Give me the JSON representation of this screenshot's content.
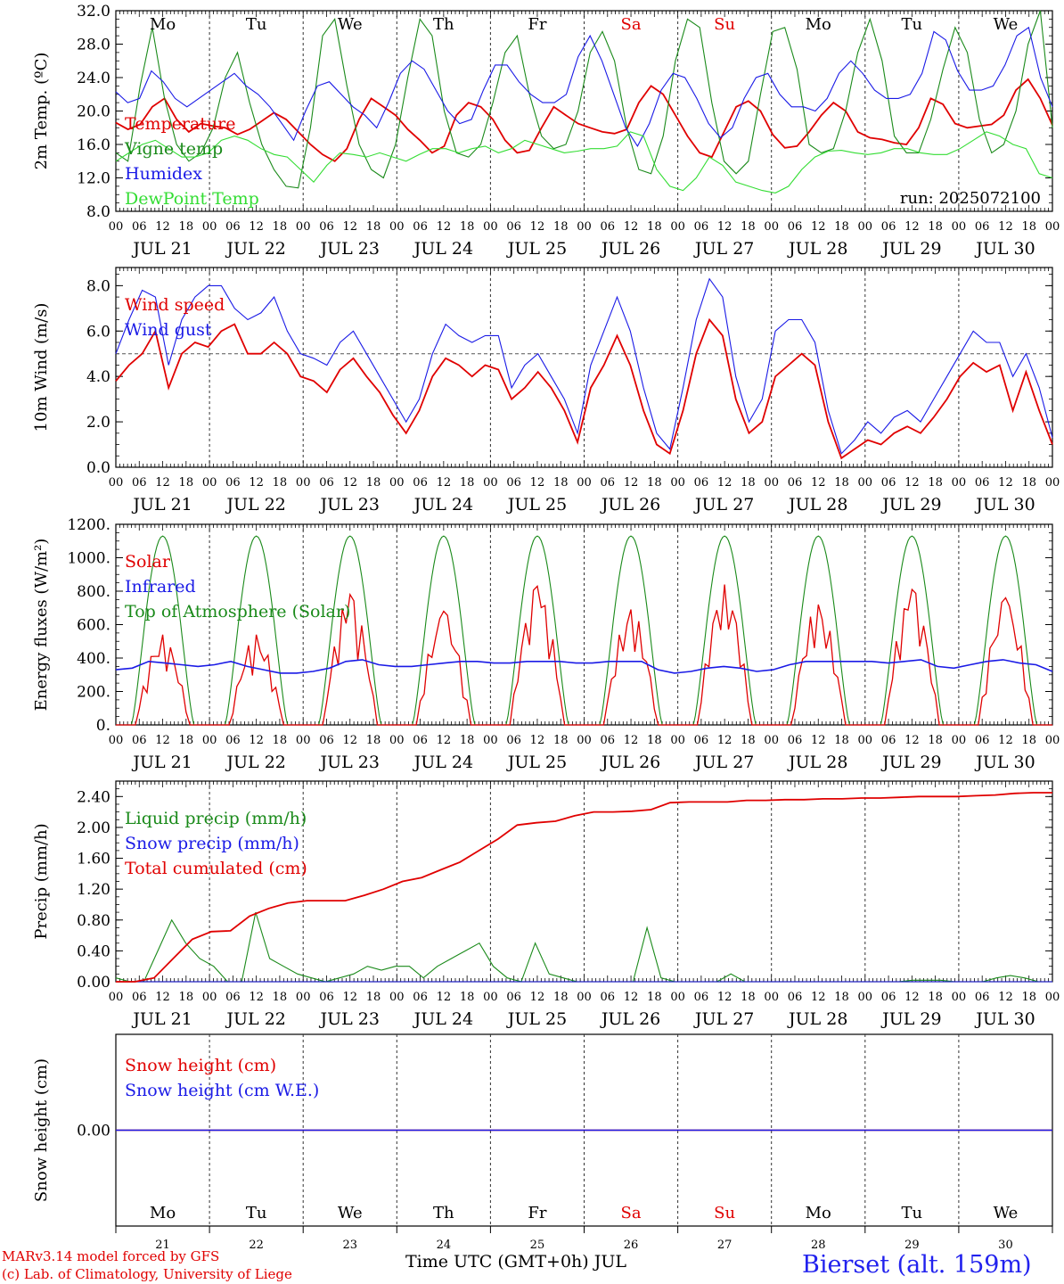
{
  "station": "Bierset (alt. 159m)",
  "model_line": "MARv3.14 model forced by GFS",
  "credit_line": "(c) Lab. of Climatology, University of Liege",
  "time_axis_title": "Time UTC (GMT+0h) JUL",
  "days": [
    {
      "weekday": "Mo",
      "date_label": "JUL 21",
      "day_num": "21",
      "weekend": false
    },
    {
      "weekday": "Tu",
      "date_label": "JUL 22",
      "day_num": "22",
      "weekend": false
    },
    {
      "weekday": "We",
      "date_label": "JUL 23",
      "day_num": "23",
      "weekend": false
    },
    {
      "weekday": "Th",
      "date_label": "JUL 24",
      "day_num": "24",
      "weekend": false
    },
    {
      "weekday": "Fr",
      "date_label": "JUL 25",
      "day_num": "25",
      "weekend": false
    },
    {
      "weekday": "Sa",
      "date_label": "JUL 26",
      "day_num": "26",
      "weekend": true
    },
    {
      "weekday": "Su",
      "date_label": "JUL 27",
      "day_num": "27",
      "weekend": true
    },
    {
      "weekday": "Mo",
      "date_label": "JUL 28",
      "day_num": "28",
      "weekend": false
    },
    {
      "weekday": "Tu",
      "date_label": "JUL 29",
      "day_num": "29",
      "weekend": false
    },
    {
      "weekday": "We",
      "date_label": "JUL 30",
      "day_num": "30",
      "weekend": false
    }
  ],
  "hour_ticks": [
    "00",
    "06",
    "12",
    "18"
  ],
  "colors": {
    "weekday": "#000000",
    "weekend": "#e00000",
    "red": "#e00000",
    "green": "#1a8a1a",
    "blue": "#1a1ae6",
    "lightgreen": "#33dd33"
  },
  "chart_data": [
    {
      "id": "temperature",
      "type": "line",
      "ylabel": "2m Temp. (ºC)",
      "ylim": [
        8,
        32
      ],
      "yticks": [
        "8.0",
        "12.0",
        "16.0",
        "20.0",
        "24.0",
        "28.0",
        "32.0"
      ],
      "annotation": "run: 2025072100",
      "show_weekday_labels": true,
      "x_unit": "hours since JUL 21 00 UTC, 3-hourly",
      "x_step_hours": 3,
      "series": [
        {
          "name": "Temperature",
          "color": "#e00000",
          "values": [
            18.6,
            17.8,
            18.4,
            20.5,
            21.5,
            19.0,
            17.5,
            18.5,
            18.2,
            18.0,
            17.2,
            17.8,
            18.8,
            19.8,
            19.0,
            17.5,
            16.0,
            14.8,
            14.0,
            15.5,
            19.0,
            21.5,
            20.5,
            19.5,
            17.8,
            16.5,
            15.0,
            15.8,
            19.5,
            21.0,
            20.5,
            19.0,
            16.5,
            15.0,
            15.3,
            18.0,
            20.5,
            19.5,
            18.5,
            18.0,
            17.5,
            17.3,
            17.8,
            21.0,
            23.0,
            22.0,
            19.5,
            17.0,
            15.0,
            14.5,
            17.5,
            20.5,
            21.2,
            20.0,
            17.2,
            15.6,
            15.8,
            17.5,
            19.5,
            21.0,
            20.0,
            17.5,
            16.8,
            16.6,
            16.2,
            16.0,
            18.0,
            21.5,
            20.8,
            18.5,
            18.0,
            18.2,
            18.4,
            19.5,
            22.5,
            23.8,
            21.5,
            18.3
          ]
        },
        {
          "name": "Vigne temp",
          "color": "#1a8a1a",
          "values": [
            15.0,
            14.0,
            23.0,
            30.0,
            21.5,
            16.0,
            14.0,
            15.0,
            18.0,
            24.0,
            27.0,
            21.0,
            16.0,
            13.0,
            11.0,
            10.8,
            18.0,
            29.0,
            31.0,
            23.0,
            16.0,
            13.0,
            12.0,
            16.0,
            24.0,
            31.0,
            29.0,
            20.0,
            15.0,
            14.5,
            16.0,
            21.0,
            27.0,
            29.0,
            22.0,
            17.0,
            15.5,
            16.0,
            20.0,
            27.0,
            29.5,
            26.0,
            18.0,
            13.0,
            12.5,
            17.0,
            26.0,
            31.0,
            30.0,
            21.0,
            14.0,
            12.5,
            14.0,
            22.0,
            29.5,
            30.0,
            25.0,
            16.0,
            15.0,
            15.5,
            20.0,
            27.0,
            31.0,
            26.0,
            17.0,
            15.0,
            15.0,
            19.0,
            25.0,
            30.0,
            27.0,
            19.0,
            15.0,
            16.0,
            20.0,
            28.0,
            32.0,
            18.0
          ]
        },
        {
          "name": "Humidex",
          "color": "#1a1ae6",
          "values": [
            22.3,
            21.0,
            21.5,
            24.8,
            23.5,
            21.5,
            20.5,
            21.5,
            22.5,
            23.5,
            24.5,
            23.0,
            22.0,
            20.5,
            18.5,
            16.5,
            20.0,
            23.0,
            23.5,
            22.0,
            20.5,
            19.5,
            18.0,
            21.0,
            24.5,
            26.0,
            25.0,
            22.5,
            20.0,
            18.5,
            19.0,
            22.5,
            25.5,
            25.5,
            23.5,
            22.0,
            21.0,
            21.0,
            22.0,
            26.5,
            29.0,
            26.0,
            22.0,
            18.0,
            15.8,
            18.5,
            22.5,
            24.5,
            24.0,
            21.5,
            18.5,
            16.8,
            18.0,
            21.5,
            24.0,
            24.5,
            22.0,
            20.5,
            20.5,
            20.0,
            21.5,
            24.5,
            26.0,
            24.5,
            22.5,
            21.5,
            21.5,
            22.0,
            24.5,
            29.5,
            28.5,
            24.8,
            22.5,
            22.5,
            23.0,
            25.5,
            29.0,
            30.0,
            24.0,
            20.5
          ]
        },
        {
          "name": "DewPoint Temp",
          "color": "#33dd33",
          "values": [
            14.0,
            15.0,
            16.0,
            16.5,
            15.5,
            14.5,
            14.5,
            15.0,
            16.5,
            17.0,
            16.5,
            15.5,
            14.8,
            14.5,
            13.0,
            11.5,
            13.5,
            15.0,
            14.8,
            14.5,
            15.0,
            14.5,
            14.0,
            14.8,
            15.5,
            15.5,
            15.0,
            15.5,
            15.8,
            15.0,
            15.5,
            16.5,
            16.0,
            15.5,
            15.0,
            15.2,
            15.5,
            15.5,
            15.8,
            17.5,
            17.0,
            13.0,
            11.0,
            10.5,
            12.0,
            14.5,
            13.5,
            11.5,
            11.0,
            10.5,
            10.2,
            11.0,
            13.0,
            14.5,
            15.2,
            15.3,
            15.0,
            14.8,
            15.0,
            15.5,
            15.5,
            15.0,
            14.8,
            14.8,
            15.5,
            16.5,
            17.5,
            17.0,
            16.0,
            15.5,
            12.5,
            12.0
          ]
        }
      ]
    },
    {
      "id": "wind",
      "type": "line",
      "ylabel": "10m Wind (m/s)",
      "ylim": [
        0,
        8.8
      ],
      "yticks": [
        "0.0",
        "2.0",
        "4.0",
        "6.0",
        "8.0"
      ],
      "reference_line": 5.0,
      "x_step_hours": 3,
      "series": [
        {
          "name": "Wind speed",
          "color": "#e00000",
          "values": [
            3.8,
            4.5,
            5.0,
            6.0,
            3.5,
            5.0,
            5.5,
            5.3,
            6.0,
            6.3,
            5.0,
            5.0,
            5.5,
            5.0,
            4.0,
            3.8,
            3.3,
            4.3,
            4.8,
            4.0,
            3.3,
            2.3,
            1.5,
            2.5,
            4.0,
            4.8,
            4.5,
            4.0,
            4.5,
            4.3,
            3.0,
            3.5,
            4.2,
            3.5,
            2.5,
            1.1,
            3.5,
            4.5,
            5.8,
            4.5,
            2.5,
            1.0,
            0.6,
            2.5,
            5.0,
            6.5,
            5.8,
            3.0,
            1.5,
            2.0,
            4.0,
            4.5,
            5.0,
            4.5,
            2.0,
            0.4,
            0.8,
            1.2,
            1.0,
            1.5,
            1.8,
            1.5,
            2.2,
            3.0,
            4.0,
            4.6,
            4.2,
            4.5,
            2.5,
            4.2,
            2.5,
            1.0
          ]
        },
        {
          "name": "Wind gust",
          "color": "#1a1ae6",
          "values": [
            5.0,
            6.5,
            7.8,
            7.5,
            4.5,
            6.5,
            7.5,
            8.0,
            8.0,
            7.0,
            6.5,
            6.8,
            7.5,
            6.0,
            5.0,
            4.8,
            4.5,
            5.5,
            6.0,
            5.0,
            4.0,
            3.0,
            2.0,
            3.0,
            5.0,
            6.3,
            5.8,
            5.5,
            5.8,
            5.8,
            3.5,
            4.5,
            5.0,
            4.0,
            3.0,
            1.5,
            4.5,
            6.0,
            7.5,
            6.0,
            3.5,
            1.5,
            0.8,
            3.5,
            6.5,
            8.3,
            7.5,
            4.0,
            2.0,
            3.0,
            6.0,
            6.5,
            6.5,
            5.5,
            2.5,
            0.6,
            1.2,
            2.0,
            1.5,
            2.2,
            2.5,
            2.0,
            3.0,
            4.0,
            5.0,
            6.0,
            5.5,
            5.5,
            4.0,
            5.0,
            3.5,
            1.3
          ]
        }
      ]
    },
    {
      "id": "energy",
      "type": "line",
      "ylabel": "Energy fluxes (W/m²)",
      "ylim": [
        0,
        1200
      ],
      "yticks": [
        "0.",
        "200.",
        "400.",
        "600.",
        "800.",
        "1000.",
        "1200."
      ],
      "x_step_hours": 3,
      "series": [
        {
          "name": "Solar",
          "color": "#e00000",
          "peaks": [
            540,
            540,
            780,
            680,
            830,
            690,
            840,
            720,
            810,
            760
          ]
        },
        {
          "name": "Infrared",
          "color": "#1a1ae6",
          "values": [
            330,
            340,
            380,
            370,
            360,
            350,
            360,
            380,
            350,
            330,
            310,
            310,
            320,
            340,
            380,
            390,
            360,
            350,
            350,
            360,
            370,
            380,
            380,
            370,
            370,
            380,
            380,
            380,
            370,
            370,
            380,
            380,
            380,
            330,
            310,
            320,
            340,
            350,
            340,
            320,
            330,
            360,
            380,
            380,
            380,
            380,
            380,
            370,
            380,
            390,
            350,
            340,
            360,
            380,
            390,
            370,
            360,
            320
          ]
        },
        {
          "name": "Top of Atmosphere (Solar)",
          "color": "#1a8a1a",
          "peak": 1130
        }
      ]
    },
    {
      "id": "precip",
      "type": "line",
      "ylabel": "Precip (mm/h)",
      "ylim": [
        0,
        2.6
      ],
      "yticks": [
        "0.00",
        "0.40",
        "0.80",
        "1.20",
        "1.60",
        "2.00",
        "2.40"
      ],
      "x_step_hours": 3,
      "series": [
        {
          "name": "Liquid precip (mm/h)",
          "color": "#1a8a1a",
          "values": [
            0.05,
            0.0,
            0.0,
            0.4,
            0.8,
            0.5,
            0.3,
            0.2,
            0.0,
            0.0,
            0.9,
            0.3,
            0.2,
            0.1,
            0.05,
            0.0,
            0.05,
            0.1,
            0.2,
            0.15,
            0.2,
            0.2,
            0.05,
            0.2,
            0.3,
            0.4,
            0.5,
            0.2,
            0.05,
            0.0,
            0.5,
            0.1,
            0.05,
            0.0,
            0.0,
            0.0,
            0.0,
            0.0,
            0.7,
            0.05,
            0.0,
            0.0,
            0.0,
            0.0,
            0.1,
            0.0,
            0.0,
            0.0,
            0.0,
            0.0,
            0.0,
            0.0,
            0.0,
            0.0,
            0.0,
            0.0,
            0.0,
            0.02,
            0.02,
            0.02,
            0.0,
            0.0,
            0.0,
            0.05,
            0.08,
            0.05,
            0.0,
            0.0
          ]
        },
        {
          "name": "Snow precip (mm/h)",
          "color": "#1a1ae6",
          "values": [
            0,
            0
          ]
        },
        {
          "name": "Total cumulated (cm)",
          "color": "#e00000",
          "values": [
            0.0,
            0.0,
            0.05,
            0.3,
            0.55,
            0.65,
            0.66,
            0.85,
            0.95,
            1.02,
            1.05,
            1.05,
            1.05,
            1.12,
            1.2,
            1.3,
            1.35,
            1.45,
            1.55,
            1.7,
            1.85,
            2.03,
            2.06,
            2.08,
            2.15,
            2.2,
            2.2,
            2.21,
            2.23,
            2.32,
            2.33,
            2.33,
            2.33,
            2.35,
            2.35,
            2.36,
            2.36,
            2.37,
            2.37,
            2.38,
            2.38,
            2.39,
            2.4,
            2.4,
            2.4,
            2.41,
            2.42,
            2.44,
            2.45,
            2.45
          ]
        }
      ]
    },
    {
      "id": "snow",
      "type": "line",
      "ylabel": "Snow height (cm)",
      "ylim": [
        -0.5,
        0.5
      ],
      "yticks": [
        "0.00"
      ],
      "show_bottom_weekdays": true,
      "series": [
        {
          "name": "Snow height (cm)",
          "color": "#e00000",
          "values": [
            0,
            0
          ]
        },
        {
          "name": "Snow height (cm W.E.)",
          "color": "#1a1ae6",
          "values": [
            0,
            0
          ]
        }
      ]
    }
  ]
}
